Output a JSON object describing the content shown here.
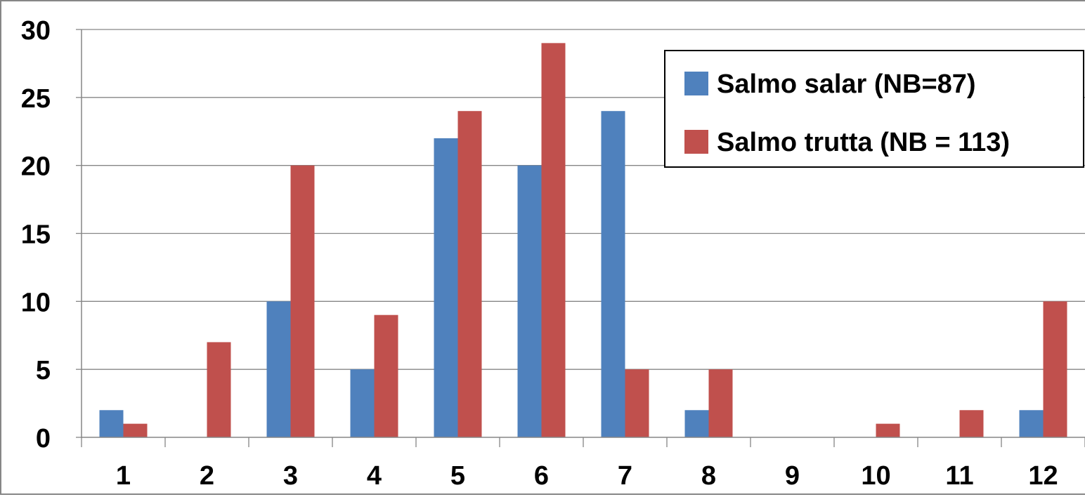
{
  "chart_data": {
    "type": "bar",
    "title": "",
    "xlabel": "",
    "ylabel": "",
    "categories": [
      "1",
      "2",
      "3",
      "4",
      "5",
      "6",
      "7",
      "8",
      "9",
      "10",
      "11",
      "12"
    ],
    "series": [
      {
        "name": "Salmo salar (NB=87)",
        "color": "#4F81BD",
        "values": [
          2,
          0,
          10,
          5,
          22,
          20,
          24,
          2,
          0,
          0,
          0,
          2
        ]
      },
      {
        "name": "Salmo trutta (NB = 113)",
        "color": "#C0504D",
        "values": [
          1,
          7,
          20,
          9,
          24,
          29,
          5,
          5,
          0,
          1,
          2,
          10
        ]
      }
    ],
    "ylim": [
      0,
      30
    ],
    "yticks": [
      "0",
      "5",
      "10",
      "15",
      "20",
      "25",
      "30"
    ],
    "grid": true,
    "legend_position": "top-right"
  }
}
